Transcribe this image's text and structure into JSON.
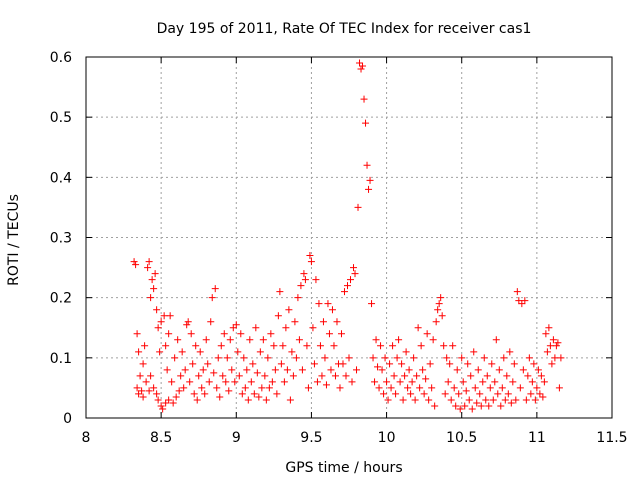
{
  "chart_data": {
    "type": "scatter",
    "title": "Day 195 of 2011, Rate Of TEC Index for receiver cas1",
    "xlabel": "GPS time / hours",
    "ylabel": "ROTI / TECUs",
    "xlim": [
      8,
      11.5
    ],
    "ylim": [
      0,
      0.6
    ],
    "xticks": [
      8,
      8.5,
      9,
      9.5,
      10,
      10.5,
      11,
      11.5
    ],
    "xtick_labels": [
      "8",
      "8.5",
      "9",
      "9.5",
      "10",
      "10.5",
      "11",
      "11.5"
    ],
    "yticks": [
      0,
      0.1,
      0.2,
      0.3,
      0.4,
      0.5,
      0.6
    ],
    "ytick_labels": [
      "0",
      "0.1",
      "0.2",
      "0.3",
      "0.4",
      "0.5",
      "0.6"
    ],
    "grid": true,
    "marker": "+",
    "marker_color": "#ff0000",
    "series": [
      {
        "name": "ROTI",
        "points": [
          [
            8.32,
            0.26
          ],
          [
            8.33,
            0.255
          ],
          [
            8.34,
            0.14
          ],
          [
            8.34,
            0.05
          ],
          [
            8.35,
            0.04
          ],
          [
            8.35,
            0.11
          ],
          [
            8.36,
            0.07
          ],
          [
            8.37,
            0.045
          ],
          [
            8.38,
            0.09
          ],
          [
            8.38,
            0.035
          ],
          [
            8.39,
            0.12
          ],
          [
            8.4,
            0.06
          ],
          [
            8.41,
            0.25
          ],
          [
            8.42,
            0.26
          ],
          [
            8.42,
            0.045
          ],
          [
            8.43,
            0.2
          ],
          [
            8.43,
            0.07
          ],
          [
            8.44,
            0.23
          ],
          [
            8.45,
            0.215
          ],
          [
            8.45,
            0.05
          ],
          [
            8.46,
            0.24
          ],
          [
            8.47,
            0.18
          ],
          [
            8.47,
            0.04
          ],
          [
            8.48,
            0.15
          ],
          [
            8.48,
            0.03
          ],
          [
            8.49,
            0.11
          ],
          [
            8.5,
            0.02
          ],
          [
            8.5,
            0.16
          ],
          [
            8.51,
            0.015
          ],
          [
            8.52,
            0.17
          ],
          [
            8.53,
            0.12
          ],
          [
            8.53,
            0.025
          ],
          [
            8.54,
            0.08
          ],
          [
            8.55,
            0.14
          ],
          [
            8.55,
            0.03
          ],
          [
            8.56,
            0.17
          ],
          [
            8.57,
            0.06
          ],
          [
            8.58,
            0.025
          ],
          [
            8.59,
            0.1
          ],
          [
            8.6,
            0.035
          ],
          [
            8.61,
            0.13
          ],
          [
            8.62,
            0.045
          ],
          [
            8.63,
            0.07
          ],
          [
            8.64,
            0.11
          ],
          [
            8.65,
            0.05
          ],
          [
            8.66,
            0.08
          ],
          [
            8.67,
            0.155
          ],
          [
            8.68,
            0.16
          ],
          [
            8.69,
            0.06
          ],
          [
            8.7,
            0.14
          ],
          [
            8.71,
            0.09
          ],
          [
            8.72,
            0.04
          ],
          [
            8.73,
            0.12
          ],
          [
            8.74,
            0.03
          ],
          [
            8.75,
            0.07
          ],
          [
            8.76,
            0.11
          ],
          [
            8.77,
            0.05
          ],
          [
            8.78,
            0.08
          ],
          [
            8.79,
            0.04
          ],
          [
            8.8,
            0.13
          ],
          [
            8.81,
            0.09
          ],
          [
            8.82,
            0.06
          ],
          [
            8.83,
            0.16
          ],
          [
            8.84,
            0.2
          ],
          [
            8.85,
            0.075
          ],
          [
            8.86,
            0.215
          ],
          [
            8.87,
            0.05
          ],
          [
            8.88,
            0.1
          ],
          [
            8.89,
            0.035
          ],
          [
            8.9,
            0.12
          ],
          [
            8.91,
            0.07
          ],
          [
            8.92,
            0.14
          ],
          [
            8.93,
            0.06
          ],
          [
            8.94,
            0.1
          ],
          [
            8.95,
            0.045
          ],
          [
            8.96,
            0.13
          ],
          [
            8.97,
            0.08
          ],
          [
            8.98,
            0.15
          ],
          [
            8.99,
            0.06
          ],
          [
            9.0,
            0.155
          ],
          [
            9.01,
            0.11
          ],
          [
            9.02,
            0.07
          ],
          [
            9.03,
            0.14
          ],
          [
            9.04,
            0.04
          ],
          [
            9.05,
            0.1
          ],
          [
            9.06,
            0.05
          ],
          [
            9.07,
            0.08
          ],
          [
            9.08,
            0.03
          ],
          [
            9.09,
            0.13
          ],
          [
            9.1,
            0.06
          ],
          [
            9.11,
            0.09
          ],
          [
            9.12,
            0.04
          ],
          [
            9.13,
            0.15
          ],
          [
            9.14,
            0.075
          ],
          [
            9.15,
            0.035
          ],
          [
            9.16,
            0.11
          ],
          [
            9.17,
            0.05
          ],
          [
            9.18,
            0.13
          ],
          [
            9.19,
            0.07
          ],
          [
            9.2,
            0.03
          ],
          [
            9.21,
            0.1
          ],
          [
            9.22,
            0.05
          ],
          [
            9.23,
            0.14
          ],
          [
            9.24,
            0.06
          ],
          [
            9.25,
            0.12
          ],
          [
            9.26,
            0.08
          ],
          [
            9.27,
            0.04
          ],
          [
            9.28,
            0.17
          ],
          [
            9.29,
            0.21
          ],
          [
            9.3,
            0.09
          ],
          [
            9.31,
            0.12
          ],
          [
            9.32,
            0.06
          ],
          [
            9.33,
            0.15
          ],
          [
            9.34,
            0.08
          ],
          [
            9.35,
            0.18
          ],
          [
            9.36,
            0.03
          ],
          [
            9.37,
            0.11
          ],
          [
            9.38,
            0.07
          ],
          [
            9.39,
            0.16
          ],
          [
            9.4,
            0.1
          ],
          [
            9.41,
            0.2
          ],
          [
            9.42,
            0.13
          ],
          [
            9.43,
            0.22
          ],
          [
            9.44,
            0.08
          ],
          [
            9.45,
            0.24
          ],
          [
            9.46,
            0.23
          ],
          [
            9.47,
            0.12
          ],
          [
            9.48,
            0.05
          ],
          [
            9.49,
            0.27
          ],
          [
            9.5,
            0.26
          ],
          [
            9.51,
            0.15
          ],
          [
            9.52,
            0.09
          ],
          [
            9.53,
            0.23
          ],
          [
            9.54,
            0.06
          ],
          [
            9.55,
            0.19
          ],
          [
            9.56,
            0.12
          ],
          [
            9.57,
            0.07
          ],
          [
            9.58,
            0.16
          ],
          [
            9.59,
            0.1
          ],
          [
            9.6,
            0.055
          ],
          [
            9.61,
            0.19
          ],
          [
            9.62,
            0.14
          ],
          [
            9.63,
            0.08
          ],
          [
            9.64,
            0.18
          ],
          [
            9.65,
            0.12
          ],
          [
            9.66,
            0.07
          ],
          [
            9.67,
            0.16
          ],
          [
            9.68,
            0.09
          ],
          [
            9.69,
            0.05
          ],
          [
            9.7,
            0.14
          ],
          [
            9.71,
            0.09
          ],
          [
            9.72,
            0.21
          ],
          [
            9.73,
            0.07
          ],
          [
            9.74,
            0.22
          ],
          [
            9.75,
            0.1
          ],
          [
            9.76,
            0.23
          ],
          [
            9.77,
            0.06
          ],
          [
            9.78,
            0.25
          ],
          [
            9.79,
            0.24
          ],
          [
            9.8,
            0.08
          ],
          [
            9.81,
            0.35
          ],
          [
            9.82,
            0.59
          ],
          [
            9.83,
            0.58
          ],
          [
            9.84,
            0.585
          ],
          [
            9.85,
            0.53
          ],
          [
            9.86,
            0.49
          ],
          [
            9.87,
            0.42
          ],
          [
            9.88,
            0.38
          ],
          [
            9.89,
            0.395
          ],
          [
            9.9,
            0.19
          ],
          [
            9.91,
            0.1
          ],
          [
            9.92,
            0.06
          ],
          [
            9.93,
            0.13
          ],
          [
            9.94,
            0.085
          ],
          [
            9.95,
            0.05
          ],
          [
            9.96,
            0.12
          ],
          [
            9.97,
            0.08
          ],
          [
            9.98,
            0.04
          ],
          [
            9.99,
            0.1
          ],
          [
            10.0,
            0.06
          ],
          [
            10.01,
            0.03
          ],
          [
            10.02,
            0.09
          ],
          [
            10.03,
            0.05
          ],
          [
            10.04,
            0.12
          ],
          [
            10.05,
            0.07
          ],
          [
            10.06,
            0.04
          ],
          [
            10.07,
            0.1
          ],
          [
            10.08,
            0.13
          ],
          [
            10.09,
            0.06
          ],
          [
            10.1,
            0.09
          ],
          [
            10.11,
            0.03
          ],
          [
            10.12,
            0.07
          ],
          [
            10.13,
            0.11
          ],
          [
            10.14,
            0.05
          ],
          [
            10.15,
            0.08
          ],
          [
            10.16,
            0.04
          ],
          [
            10.17,
            0.06
          ],
          [
            10.18,
            0.1
          ],
          [
            10.19,
            0.03
          ],
          [
            10.2,
            0.07
          ],
          [
            10.21,
            0.15
          ],
          [
            10.22,
            0.05
          ],
          [
            10.23,
            0.12
          ],
          [
            10.24,
            0.08
          ],
          [
            10.25,
            0.04
          ],
          [
            10.26,
            0.065
          ],
          [
            10.27,
            0.14
          ],
          [
            10.28,
            0.03
          ],
          [
            10.29,
            0.09
          ],
          [
            10.3,
            0.05
          ],
          [
            10.31,
            0.13
          ],
          [
            10.32,
            0.02
          ],
          [
            10.33,
            0.16
          ],
          [
            10.34,
            0.18
          ],
          [
            10.35,
            0.19
          ],
          [
            10.36,
            0.2
          ],
          [
            10.37,
            0.17
          ],
          [
            10.38,
            0.12
          ],
          [
            10.39,
            0.04
          ],
          [
            10.4,
            0.1
          ],
          [
            10.41,
            0.06
          ],
          [
            10.42,
            0.09
          ],
          [
            10.43,
            0.03
          ],
          [
            10.44,
            0.12
          ],
          [
            10.45,
            0.05
          ],
          [
            10.46,
            0.02
          ],
          [
            10.47,
            0.08
          ],
          [
            10.48,
            0.04
          ],
          [
            10.49,
            0.015
          ],
          [
            10.5,
            0.1
          ],
          [
            10.51,
            0.06
          ],
          [
            10.52,
            0.02
          ],
          [
            10.53,
            0.045
          ],
          [
            10.54,
            0.09
          ],
          [
            10.55,
            0.03
          ],
          [
            10.56,
            0.07
          ],
          [
            10.57,
            0.015
          ],
          [
            10.58,
            0.11
          ],
          [
            10.59,
            0.05
          ],
          [
            10.6,
            0.025
          ],
          [
            10.61,
            0.08
          ],
          [
            10.62,
            0.04
          ],
          [
            10.63,
            0.02
          ],
          [
            10.64,
            0.06
          ],
          [
            10.65,
            0.1
          ],
          [
            10.66,
            0.03
          ],
          [
            10.67,
            0.07
          ],
          [
            10.68,
            0.02
          ],
          [
            10.69,
            0.05
          ],
          [
            10.7,
            0.09
          ],
          [
            10.71,
            0.03
          ],
          [
            10.72,
            0.06
          ],
          [
            10.73,
            0.13
          ],
          [
            10.74,
            0.04
          ],
          [
            10.75,
            0.08
          ],
          [
            10.76,
            0.02
          ],
          [
            10.77,
            0.05
          ],
          [
            10.78,
            0.1
          ],
          [
            10.79,
            0.03
          ],
          [
            10.8,
            0.07
          ],
          [
            10.81,
            0.04
          ],
          [
            10.82,
            0.11
          ],
          [
            10.83,
            0.025
          ],
          [
            10.84,
            0.06
          ],
          [
            10.85,
            0.09
          ],
          [
            10.86,
            0.03
          ],
          [
            10.87,
            0.21
          ],
          [
            10.88,
            0.195
          ],
          [
            10.89,
            0.05
          ],
          [
            10.9,
            0.19
          ],
          [
            10.91,
            0.08
          ],
          [
            10.92,
            0.195
          ],
          [
            10.93,
            0.03
          ],
          [
            10.94,
            0.07
          ],
          [
            10.95,
            0.1
          ],
          [
            10.96,
            0.04
          ],
          [
            10.97,
            0.06
          ],
          [
            10.98,
            0.09
          ],
          [
            10.99,
            0.03
          ],
          [
            11.0,
            0.05
          ],
          [
            11.01,
            0.08
          ],
          [
            11.02,
            0.04
          ],
          [
            11.03,
            0.07
          ],
          [
            11.04,
            0.035
          ],
          [
            11.05,
            0.06
          ],
          [
            11.06,
            0.14
          ],
          [
            11.07,
            0.11
          ],
          [
            11.08,
            0.15
          ],
          [
            11.09,
            0.12
          ],
          [
            11.1,
            0.09
          ],
          [
            11.11,
            0.13
          ],
          [
            11.12,
            0.1
          ],
          [
            11.13,
            0.12
          ],
          [
            11.14,
            0.125
          ],
          [
            11.15,
            0.05
          ],
          [
            11.16,
            0.1
          ]
        ]
      }
    ]
  }
}
